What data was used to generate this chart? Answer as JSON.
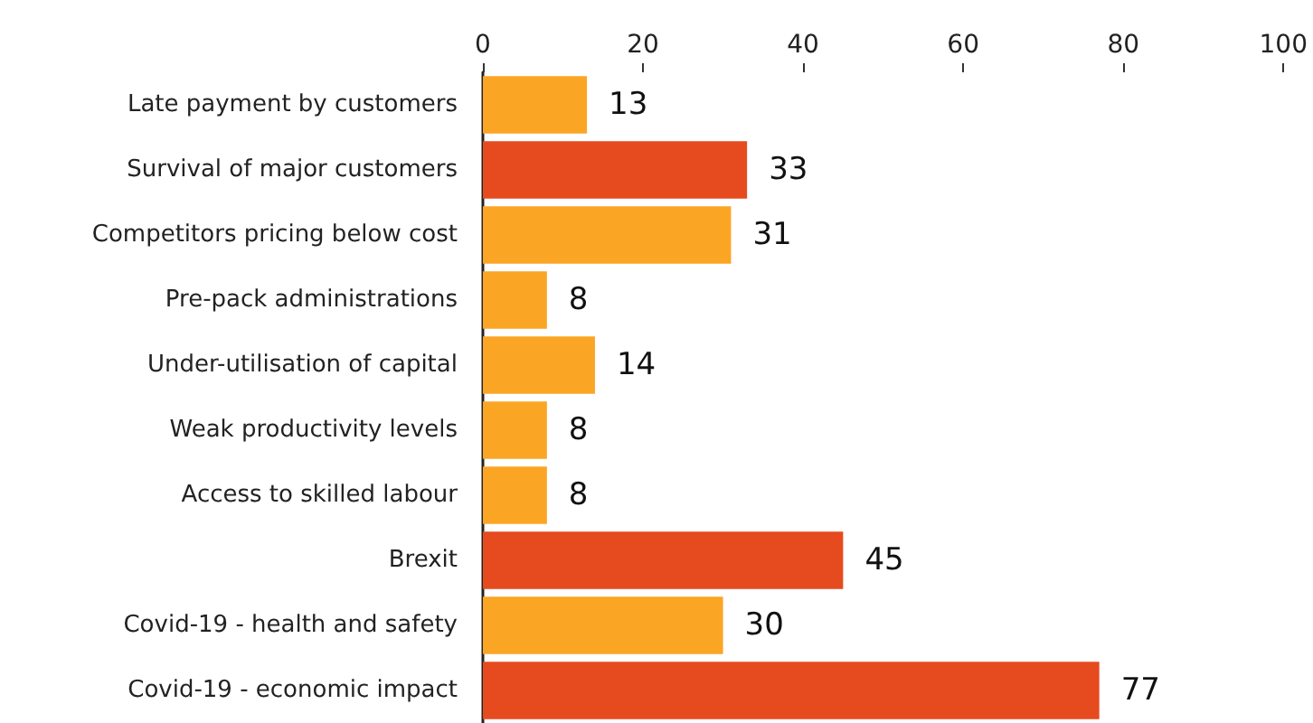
{
  "chart_data": {
    "type": "bar",
    "orientation": "horizontal",
    "categories": [
      "Late payment by customers",
      "Survival of major customers",
      "Competitors pricing below cost",
      "Pre-pack administrations",
      "Under-utilisation of capital",
      "Weak productivity levels",
      "Access to skilled labour",
      "Brexit",
      "Covid-19 - health and safety",
      "Covid-19 - economic impact"
    ],
    "values": [
      13,
      33,
      31,
      8,
      14,
      8,
      8,
      45,
      30,
      77
    ],
    "colors": [
      "#fba524",
      "#e64a1f",
      "#fba524",
      "#fba524",
      "#fba524",
      "#fba524",
      "#fba524",
      "#e64a1f",
      "#fba524",
      "#e64a1f"
    ],
    "xlim": [
      0,
      100
    ],
    "xticks": [
      0,
      20,
      40,
      60,
      80,
      100
    ],
    "data_labels": true,
    "grid": false
  }
}
